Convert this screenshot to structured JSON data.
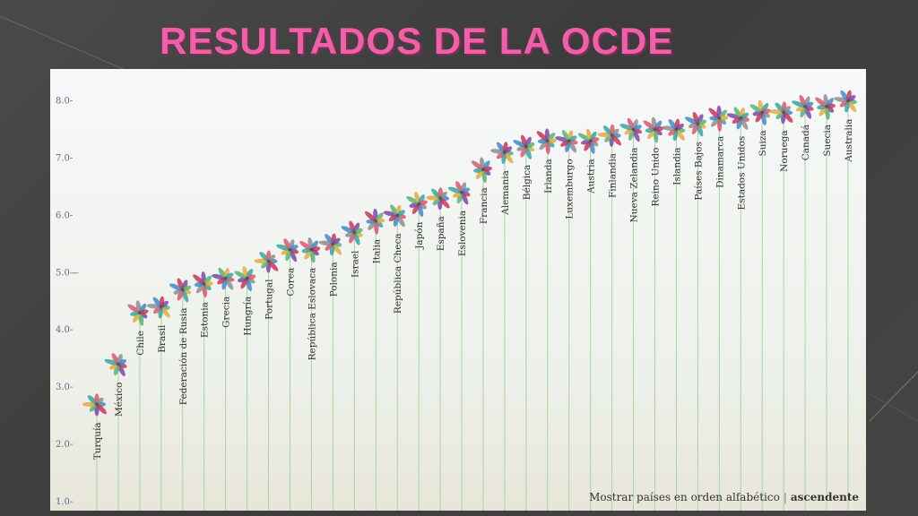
{
  "slide": {
    "title": "RESULTADOS DE LA OCDE"
  },
  "footer": {
    "sort_label": "Mostrar países en orden alfabético",
    "separator": "|",
    "order_label": "ascendente"
  },
  "colors": {
    "title": "#f05fa8",
    "stem": "#a8d4a0",
    "petals": [
      "#3a85c9",
      "#c9304a",
      "#7a3fa6",
      "#52b06e",
      "#e3a73b",
      "#2fa59c",
      "#d9506a",
      "#8a8a8a"
    ]
  },
  "chart_data": {
    "type": "scatter",
    "marker": "flower",
    "ylim": [
      1.0,
      8.4
    ],
    "yticks": [
      "1.0-",
      "2.0-",
      "3.0-",
      "4.0-",
      "5.0—",
      "6.0-",
      "7.0-",
      "8.0-"
    ],
    "ytick_values": [
      1,
      2,
      3,
      4,
      5,
      6,
      7,
      8
    ],
    "categories": [
      "Turquía",
      "México",
      "Chile",
      "Brasil",
      "Federación de Rusia",
      "Estonia",
      "Grecia",
      "Hungría",
      "Portugal",
      "Corea",
      "República Eslovaca",
      "Polonia",
      "Israel",
      "Italia",
      "República Checa",
      "Japón",
      "España",
      "Eslovenia",
      "Francia",
      "Alemania",
      "Bélgica",
      "Irlanda",
      "Luxemburgo",
      "Austria",
      "Finlandia",
      "Nueva Zelandia",
      "Reino Unido",
      "Islandia",
      "Países Bajos",
      "Dinamarca",
      "Estados Unidos",
      "Suiza",
      "Noruega",
      "Canadá",
      "Suecia",
      "Australia"
    ],
    "values": [
      2.7,
      3.4,
      4.3,
      4.4,
      4.7,
      4.8,
      4.9,
      4.9,
      5.2,
      5.4,
      5.4,
      5.5,
      5.7,
      5.9,
      6.0,
      6.2,
      6.3,
      6.4,
      6.8,
      7.1,
      7.2,
      7.3,
      7.3,
      7.3,
      7.4,
      7.5,
      7.5,
      7.5,
      7.6,
      7.7,
      7.7,
      7.8,
      7.8,
      7.9,
      7.9,
      8.0
    ]
  }
}
